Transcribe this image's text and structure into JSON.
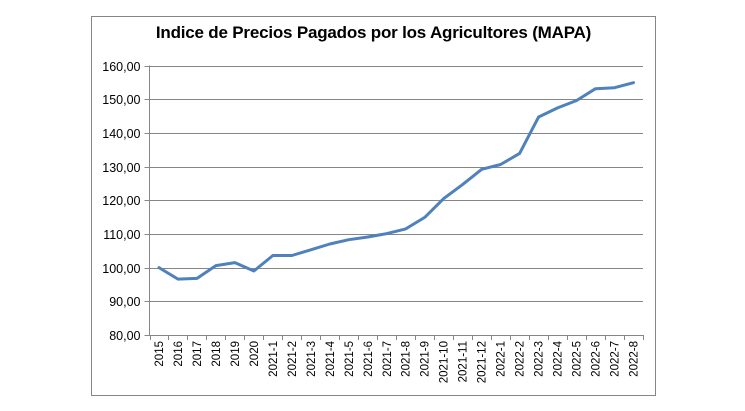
{
  "chart_data": {
    "type": "line",
    "title": "Indice de Precios Pagados por los Agricultores (MAPA)",
    "xlabel": "",
    "ylabel": "",
    "ylim": [
      80,
      160
    ],
    "yticks": [
      "80,00",
      "90,00",
      "100,00",
      "110,00",
      "120,00",
      "130,00",
      "140,00",
      "150,00",
      "160,00"
    ],
    "ytick_values": [
      80,
      90,
      100,
      110,
      120,
      130,
      140,
      150,
      160
    ],
    "grid": true,
    "legend": "none",
    "categories": [
      "2015",
      "2016",
      "2017",
      "2018",
      "2019",
      "2020",
      "2021-1",
      "2021-2",
      "2021-3",
      "2021-4",
      "2021-5",
      "2021-6",
      "2021-7",
      "2021-8",
      "2021-9",
      "2021-10",
      "2021-11",
      "2021-12",
      "2022-1",
      "2022-2",
      "2022-3",
      "2022-4",
      "2022-5",
      "2022-6",
      "2022-7",
      "2022-8"
    ],
    "series": [
      {
        "name": "Indice de Precios Pagados",
        "color": "#4F81BD",
        "values": [
          100.0,
          96.6,
          96.8,
          100.6,
          101.5,
          99.0,
          103.6,
          103.6,
          105.3,
          107.0,
          108.3,
          109.1,
          110.1,
          111.5,
          114.9,
          120.5,
          124.7,
          129.2,
          130.6,
          133.9,
          144.7,
          147.4,
          149.6,
          153.1,
          153.4,
          154.9
        ]
      }
    ]
  }
}
